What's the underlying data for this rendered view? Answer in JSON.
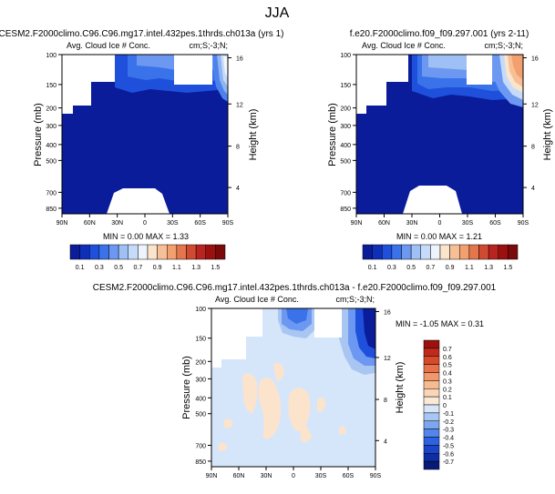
{
  "page": {
    "title": "JJA"
  },
  "colors": {
    "dark_blue": "#0a1c9a",
    "mid_blue": "#1f50dc",
    "light_blue": "#8fb4f0",
    "pale_blue": "#d6e6fa",
    "peach": "#fce3cc",
    "orange": "#f2a06e",
    "dark_red": "#9c1010"
  },
  "chart_data": [
    {
      "type": "heatmap",
      "title": "CESM2.F2000climo.C96.C96.mg17.intel.432pes.1thrds.ch013a (yrs 1)",
      "subtitle_left": "Avg. Cloud Ice # Conc.",
      "subtitle_right": "cm;S;-3;N;",
      "ylabel": "Pressure (mb)",
      "ylabel_right": "Height (km)",
      "x_ticks": [
        "90N",
        "60N",
        "30N",
        "0",
        "30S",
        "60S",
        "90S"
      ],
      "y_ticks": [
        "100",
        "150",
        "200",
        "300",
        "400",
        "500",
        "700",
        "850"
      ],
      "y_ticks_right": [
        "16",
        "12",
        "8",
        "4"
      ],
      "stats": "MIN =  0.00   MAX =   1.33",
      "min": 0.0,
      "max": 1.33,
      "colorbar_labels": [
        "0.1",
        "0.3",
        "0.5",
        "0.7",
        "0.9",
        "1.1",
        "1.3",
        "1.5"
      ],
      "colorbar_range": [
        0,
        1.6
      ]
    },
    {
      "type": "heatmap",
      "title": "f.e20.F2000climo.f09_f09.297.001 (yrs 2-11)",
      "subtitle_left": "Avg. Cloud Ice # Conc.",
      "subtitle_right": "cm;S;-3;N;",
      "ylabel": "Pressure (mb)",
      "ylabel_right": "Height (km)",
      "x_ticks": [
        "90N",
        "60N",
        "30N",
        "0",
        "30S",
        "60S",
        "90S"
      ],
      "y_ticks": [
        "100",
        "150",
        "200",
        "300",
        "400",
        "500",
        "700",
        "850"
      ],
      "y_ticks_right": [
        "16",
        "12",
        "8",
        "4"
      ],
      "stats": "MIN =  0.00   MAX =   1.21",
      "min": 0.0,
      "max": 1.21,
      "colorbar_labels": [
        "0.1",
        "0.3",
        "0.5",
        "0.7",
        "0.9",
        "1.1",
        "1.3",
        "1.5"
      ],
      "colorbar_range": [
        0,
        1.6
      ]
    },
    {
      "type": "heatmap",
      "title": "CESM2.F2000climo.C96.C96.mg17.intel.432pes.1thrds.ch013a - f.e20.F2000climo.f09_f09.297.001",
      "subtitle_left": "Avg. Cloud Ice # Conc.",
      "subtitle_right": "cm;S;-3;N;",
      "ylabel": "Pressure (mb)",
      "ylabel_right": "Height (km)",
      "x_ticks": [
        "90N",
        "60N",
        "30N",
        "0",
        "30S",
        "60S",
        "90S"
      ],
      "y_ticks": [
        "100",
        "150",
        "200",
        "300",
        "400",
        "500",
        "700",
        "850"
      ],
      "y_ticks_right": [
        "16",
        "12",
        "8",
        "4"
      ],
      "stats": "MIN = -1.05   MAX =   0.31",
      "min": -1.05,
      "max": 0.31,
      "colorbar_labels": [
        "0.7",
        "0.6",
        "0.5",
        "0.4",
        "0.3",
        "0.2",
        "0.1",
        "0",
        "-0.1",
        "-0.2",
        "-0.3",
        "-0.4",
        "-0.5",
        "-0.6",
        "-0.7"
      ],
      "colorbar_range": [
        -0.8,
        0.8
      ]
    }
  ]
}
